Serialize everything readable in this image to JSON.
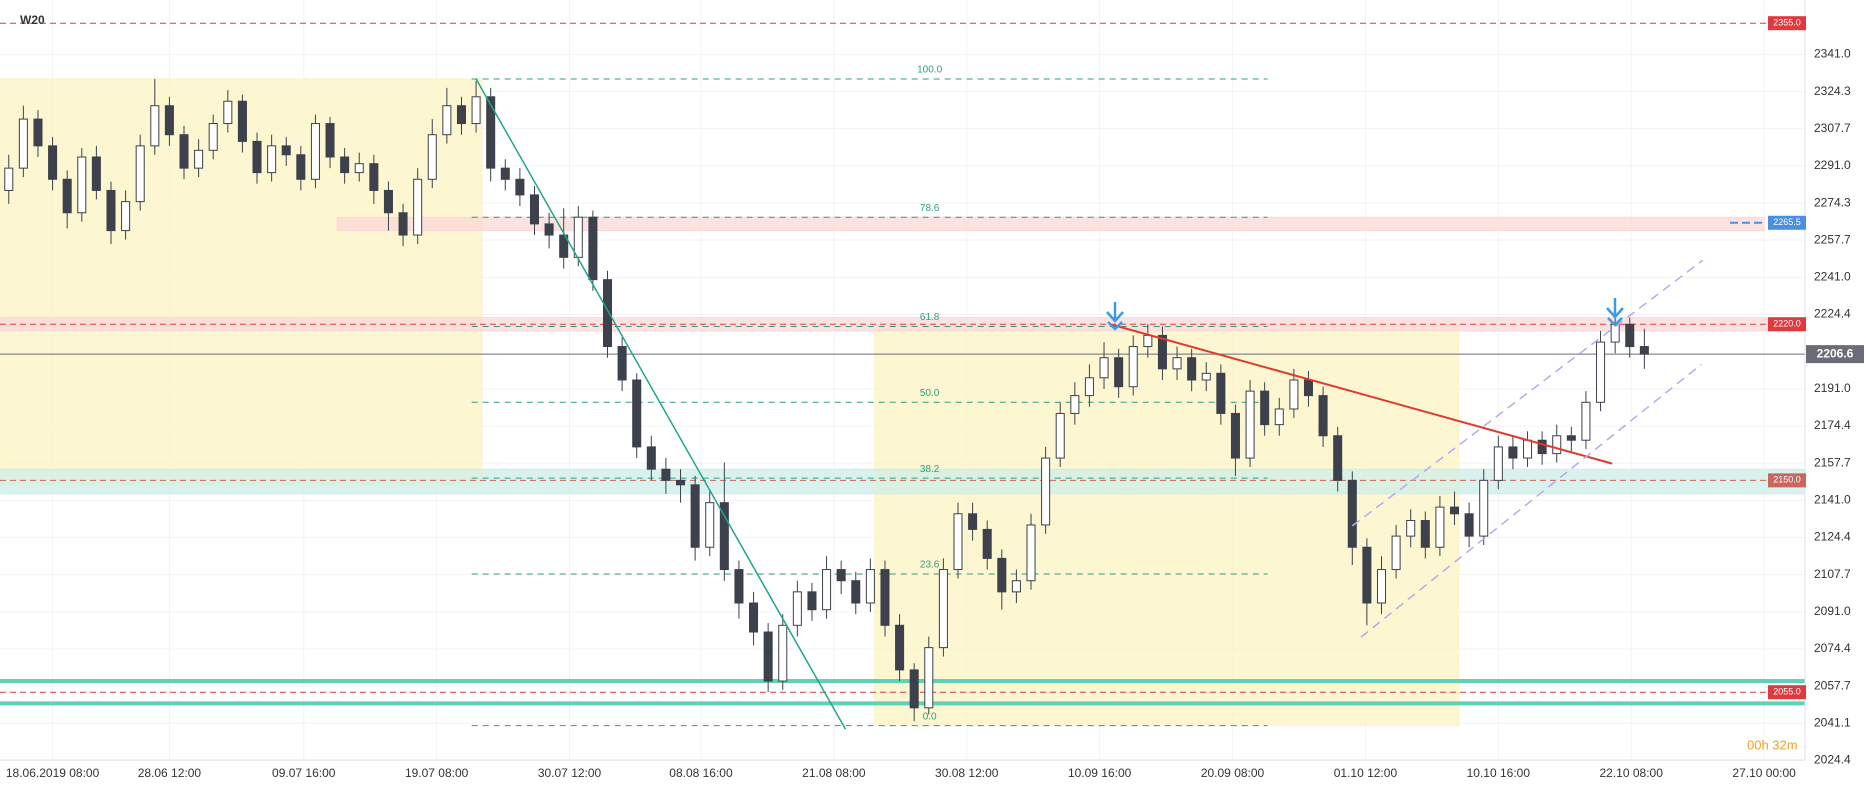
{
  "chart_data": {
    "type": "candlestick",
    "title": "W20",
    "timer": "00h 32m",
    "up_color": "#ffffff",
    "down_color": "#3c414c",
    "wick_color": "#3c414c",
    "xlim": [
      -0.6,
      123
    ],
    "ylim": [
      2024.6,
      2365.4
    ],
    "grid": true,
    "xticks": [
      {
        "value": 3,
        "label": "18.06.2019  08:00"
      },
      {
        "value": 11,
        "label": "28.06  12:00"
      },
      {
        "value": 20.2,
        "label": "09.07  16:00"
      },
      {
        "value": 29.3,
        "label": "19.07  08:00"
      },
      {
        "value": 38.4,
        "label": "30.07  12:00"
      },
      {
        "value": 47.4,
        "label": "08.08  16:00"
      },
      {
        "value": 56.5,
        "label": "21.08  08:00"
      },
      {
        "value": 65.6,
        "label": "30.08  12:00"
      },
      {
        "value": 74.7,
        "label": "10.09  16:00"
      },
      {
        "value": 83.8,
        "label": "20.09  08:00"
      },
      {
        "value": 92.9,
        "label": "01.10  12:00"
      },
      {
        "value": 102,
        "label": "10.10  16:00"
      },
      {
        "value": 111.1,
        "label": "22.10  08:00"
      },
      {
        "value": 120.2,
        "label": "27.10  00:00"
      }
    ],
    "yticks": [
      {
        "value": 2341,
        "label": "2341.0"
      },
      2324.3,
      2307.7,
      {
        "value": 2291,
        "label": "2291.0"
      },
      2274.3,
      2257.7,
      {
        "value": 2241,
        "label": "2241.0"
      },
      2224.4,
      {
        "value": 2191,
        "label": "2191.0"
      },
      2174.4,
      2157.7,
      {
        "value": 2141,
        "label": "2141.0"
      },
      2124.4,
      2107.7,
      {
        "value": 2091,
        "label": "2091.0"
      },
      2074.4,
      2057.7,
      2041.1,
      2024.4
    ],
    "open": [
      2280,
      2290,
      2312,
      2300,
      2285,
      2270,
      2295,
      2280,
      2262,
      2275,
      2300,
      2318,
      2305,
      2290,
      2298,
      2310,
      2320,
      2302,
      2288,
      2300,
      2296,
      2285,
      2310,
      2295,
      2288,
      2292,
      2280,
      2270,
      2260,
      2285,
      2305,
      2318,
      2310,
      2322,
      2290,
      2285,
      2278,
      2265,
      2260,
      2250,
      2268,
      2240,
      2210,
      2195,
      2165,
      2155,
      2150,
      2148,
      2120,
      2140,
      2110,
      2095,
      2082,
      2060,
      2085,
      2100,
      2092,
      2110,
      2105,
      2095,
      2110,
      2085,
      2065,
      2048,
      2075,
      2110,
      2135,
      2128,
      2115,
      2100,
      2105,
      2130,
      2160,
      2180,
      2188,
      2196,
      2205,
      2192,
      2210,
      2215,
      2200,
      2205,
      2195,
      2198,
      2180,
      2160,
      2190,
      2175,
      2182,
      2195,
      2188,
      2170,
      2150,
      2120,
      2095,
      2110,
      2125,
      2132,
      2120,
      2138,
      2135,
      2125,
      2150,
      2165,
      2160,
      2168,
      2162,
      2170,
      2168,
      2185,
      2212,
      2220,
      2210
    ],
    "high": [
      2296,
      2318,
      2316,
      2304,
      2289,
      2299,
      2300,
      2284,
      2280,
      2305,
      2330,
      2322,
      2309,
      2303,
      2314,
      2325,
      2323,
      2306,
      2305,
      2304,
      2300,
      2314,
      2313,
      2299,
      2297,
      2296,
      2284,
      2274,
      2290,
      2312,
      2326,
      2322,
      2329,
      2326,
      2294,
      2290,
      2282,
      2270,
      2272,
      2273,
      2271,
      2244,
      2214,
      2198,
      2170,
      2160,
      2155,
      2152,
      2145,
      2158,
      2114,
      2100,
      2086,
      2090,
      2105,
      2104,
      2116,
      2114,
      2109,
      2115,
      2114,
      2090,
      2068,
      2080,
      2115,
      2140,
      2140,
      2132,
      2119,
      2110,
      2135,
      2165,
      2185,
      2194,
      2202,
      2212,
      2209,
      2215,
      2220,
      2219,
      2210,
      2209,
      2203,
      2202,
      2184,
      2195,
      2194,
      2187,
      2200,
      2199,
      2192,
      2174,
      2154,
      2124,
      2116,
      2130,
      2137,
      2136,
      2143,
      2145,
      2140,
      2155,
      2170,
      2170,
      2172,
      2172,
      2175,
      2174,
      2190,
      2217,
      2224,
      2223,
      2218
    ],
    "low": [
      2274,
      2286,
      2295,
      2280,
      2263,
      2266,
      2276,
      2256,
      2258,
      2271,
      2296,
      2300,
      2285,
      2286,
      2294,
      2306,
      2297,
      2283,
      2284,
      2291,
      2280,
      2281,
      2290,
      2283,
      2284,
      2274,
      2262,
      2255,
      2256,
      2281,
      2301,
      2305,
      2306,
      2284,
      2280,
      2273,
      2260,
      2254,
      2245,
      2246,
      2235,
      2205,
      2190,
      2160,
      2150,
      2144,
      2140,
      2114,
      2116,
      2105,
      2088,
      2076,
      2055,
      2056,
      2080,
      2087,
      2088,
      2099,
      2090,
      2091,
      2080,
      2060,
      2042,
      2045,
      2071,
      2106,
      2123,
      2110,
      2092,
      2095,
      2101,
      2126,
      2156,
      2175,
      2183,
      2191,
      2187,
      2188,
      2205,
      2195,
      2195,
      2190,
      2190,
      2175,
      2152,
      2156,
      2170,
      2170,
      2178,
      2183,
      2165,
      2145,
      2112,
      2085,
      2090,
      2106,
      2120,
      2115,
      2116,
      2130,
      2120,
      2121,
      2146,
      2155,
      2156,
      2157,
      2158,
      2163,
      2164,
      2181,
      2207,
      2205,
      2200
    ],
    "close": [
      2290,
      2312,
      2300,
      2285,
      2270,
      2295,
      2280,
      2262,
      2275,
      2300,
      2318,
      2305,
      2290,
      2298,
      2310,
      2320,
      2302,
      2288,
      2300,
      2296,
      2285,
      2310,
      2295,
      2288,
      2292,
      2280,
      2270,
      2260,
      2285,
      2305,
      2318,
      2310,
      2322,
      2290,
      2285,
      2278,
      2265,
      2260,
      2250,
      2268,
      2240,
      2210,
      2195,
      2165,
      2155,
      2150,
      2148,
      2120,
      2140,
      2110,
      2095,
      2082,
      2060,
      2085,
      2100,
      2092,
      2110,
      2105,
      2095,
      2110,
      2085,
      2065,
      2048,
      2075,
      2110,
      2135,
      2128,
      2115,
      2100,
      2105,
      2130,
      2160,
      2180,
      2188,
      2196,
      2205,
      2192,
      2210,
      2215,
      2200,
      2205,
      2195,
      2198,
      2180,
      2160,
      2190,
      2175,
      2182,
      2195,
      2188,
      2170,
      2150,
      2120,
      2095,
      2110,
      2125,
      2132,
      2120,
      2138,
      2135,
      2125,
      2150,
      2165,
      2160,
      2168,
      2162,
      2170,
      2168,
      2185,
      2212,
      2220,
      2210,
      2206.6
    ],
    "zones": [
      {
        "x": [
          -0.6,
          32.4
        ],
        "y": [
          2148.4,
          2330
        ],
        "color": "#fbf3c2"
      },
      {
        "x": [
          59.3,
          99.3
        ],
        "y": [
          2040,
          2220
        ],
        "color": "#fbf3c2"
      },
      {
        "x": [
          22.5,
          120.2
        ],
        "y": [
          2262,
          2268
        ],
        "color": "#fcd8d8"
      },
      {
        "x": [
          -0.6,
          123
        ],
        "y": [
          2217,
          2223
        ],
        "color": "#fcd8d8"
      },
      {
        "x": [
          -0.6,
          123
        ],
        "y": [
          2144,
          2155
        ],
        "color": "#cdeee8"
      }
    ],
    "fib": [
      {
        "value": 2330,
        "label": "100.0"
      },
      {
        "value": 2268,
        "label": "78.6"
      },
      {
        "value": 2219,
        "label": "61.8"
      },
      {
        "value": 2185,
        "label": "50.0"
      },
      {
        "value": 2151,
        "label": "38.2"
      },
      {
        "value": 2108,
        "label": "23.6"
      },
      {
        "value": 2040,
        "label": "0.0"
      }
    ],
    "fib_x": [
      31.7,
      86.2
    ],
    "bands": [
      2060,
      2050
    ],
    "levels": [
      {
        "value": 2355,
        "label": "2355.0",
        "color": "#e0393e"
      },
      {
        "value": 2265.5,
        "label": "2265.5",
        "color": "#4a8fe0"
      },
      {
        "value": 2220,
        "label": "2220.0",
        "color": "#e0393e"
      },
      {
        "value": 2206.6,
        "label": "2206.6",
        "color": "#6a6d78"
      },
      {
        "value": 2150,
        "label": "2150.0",
        "color": "#c9665e"
      },
      {
        "value": 2055,
        "label": "2055.0",
        "color": "#e0393e"
      }
    ],
    "lines": [
      {
        "x": [
          32,
          57.3
        ],
        "y": [
          2330,
          2038.4
        ],
        "color": "#22a58a"
      },
      {
        "x": [
          75.6,
          109.8
        ],
        "y": [
          2219.7,
          2157.5
        ],
        "color": "#e0392e"
      },
      {
        "x": [
          92.6,
          115.9
        ],
        "y": [
          2079.7,
          2202
        ],
        "color": "#b9a8ec"
      },
      {
        "x": [
          92,
          116
        ],
        "y": [
          2129.6,
          2248.7
        ],
        "color": "#b9a8ec"
      }
    ]
  }
}
